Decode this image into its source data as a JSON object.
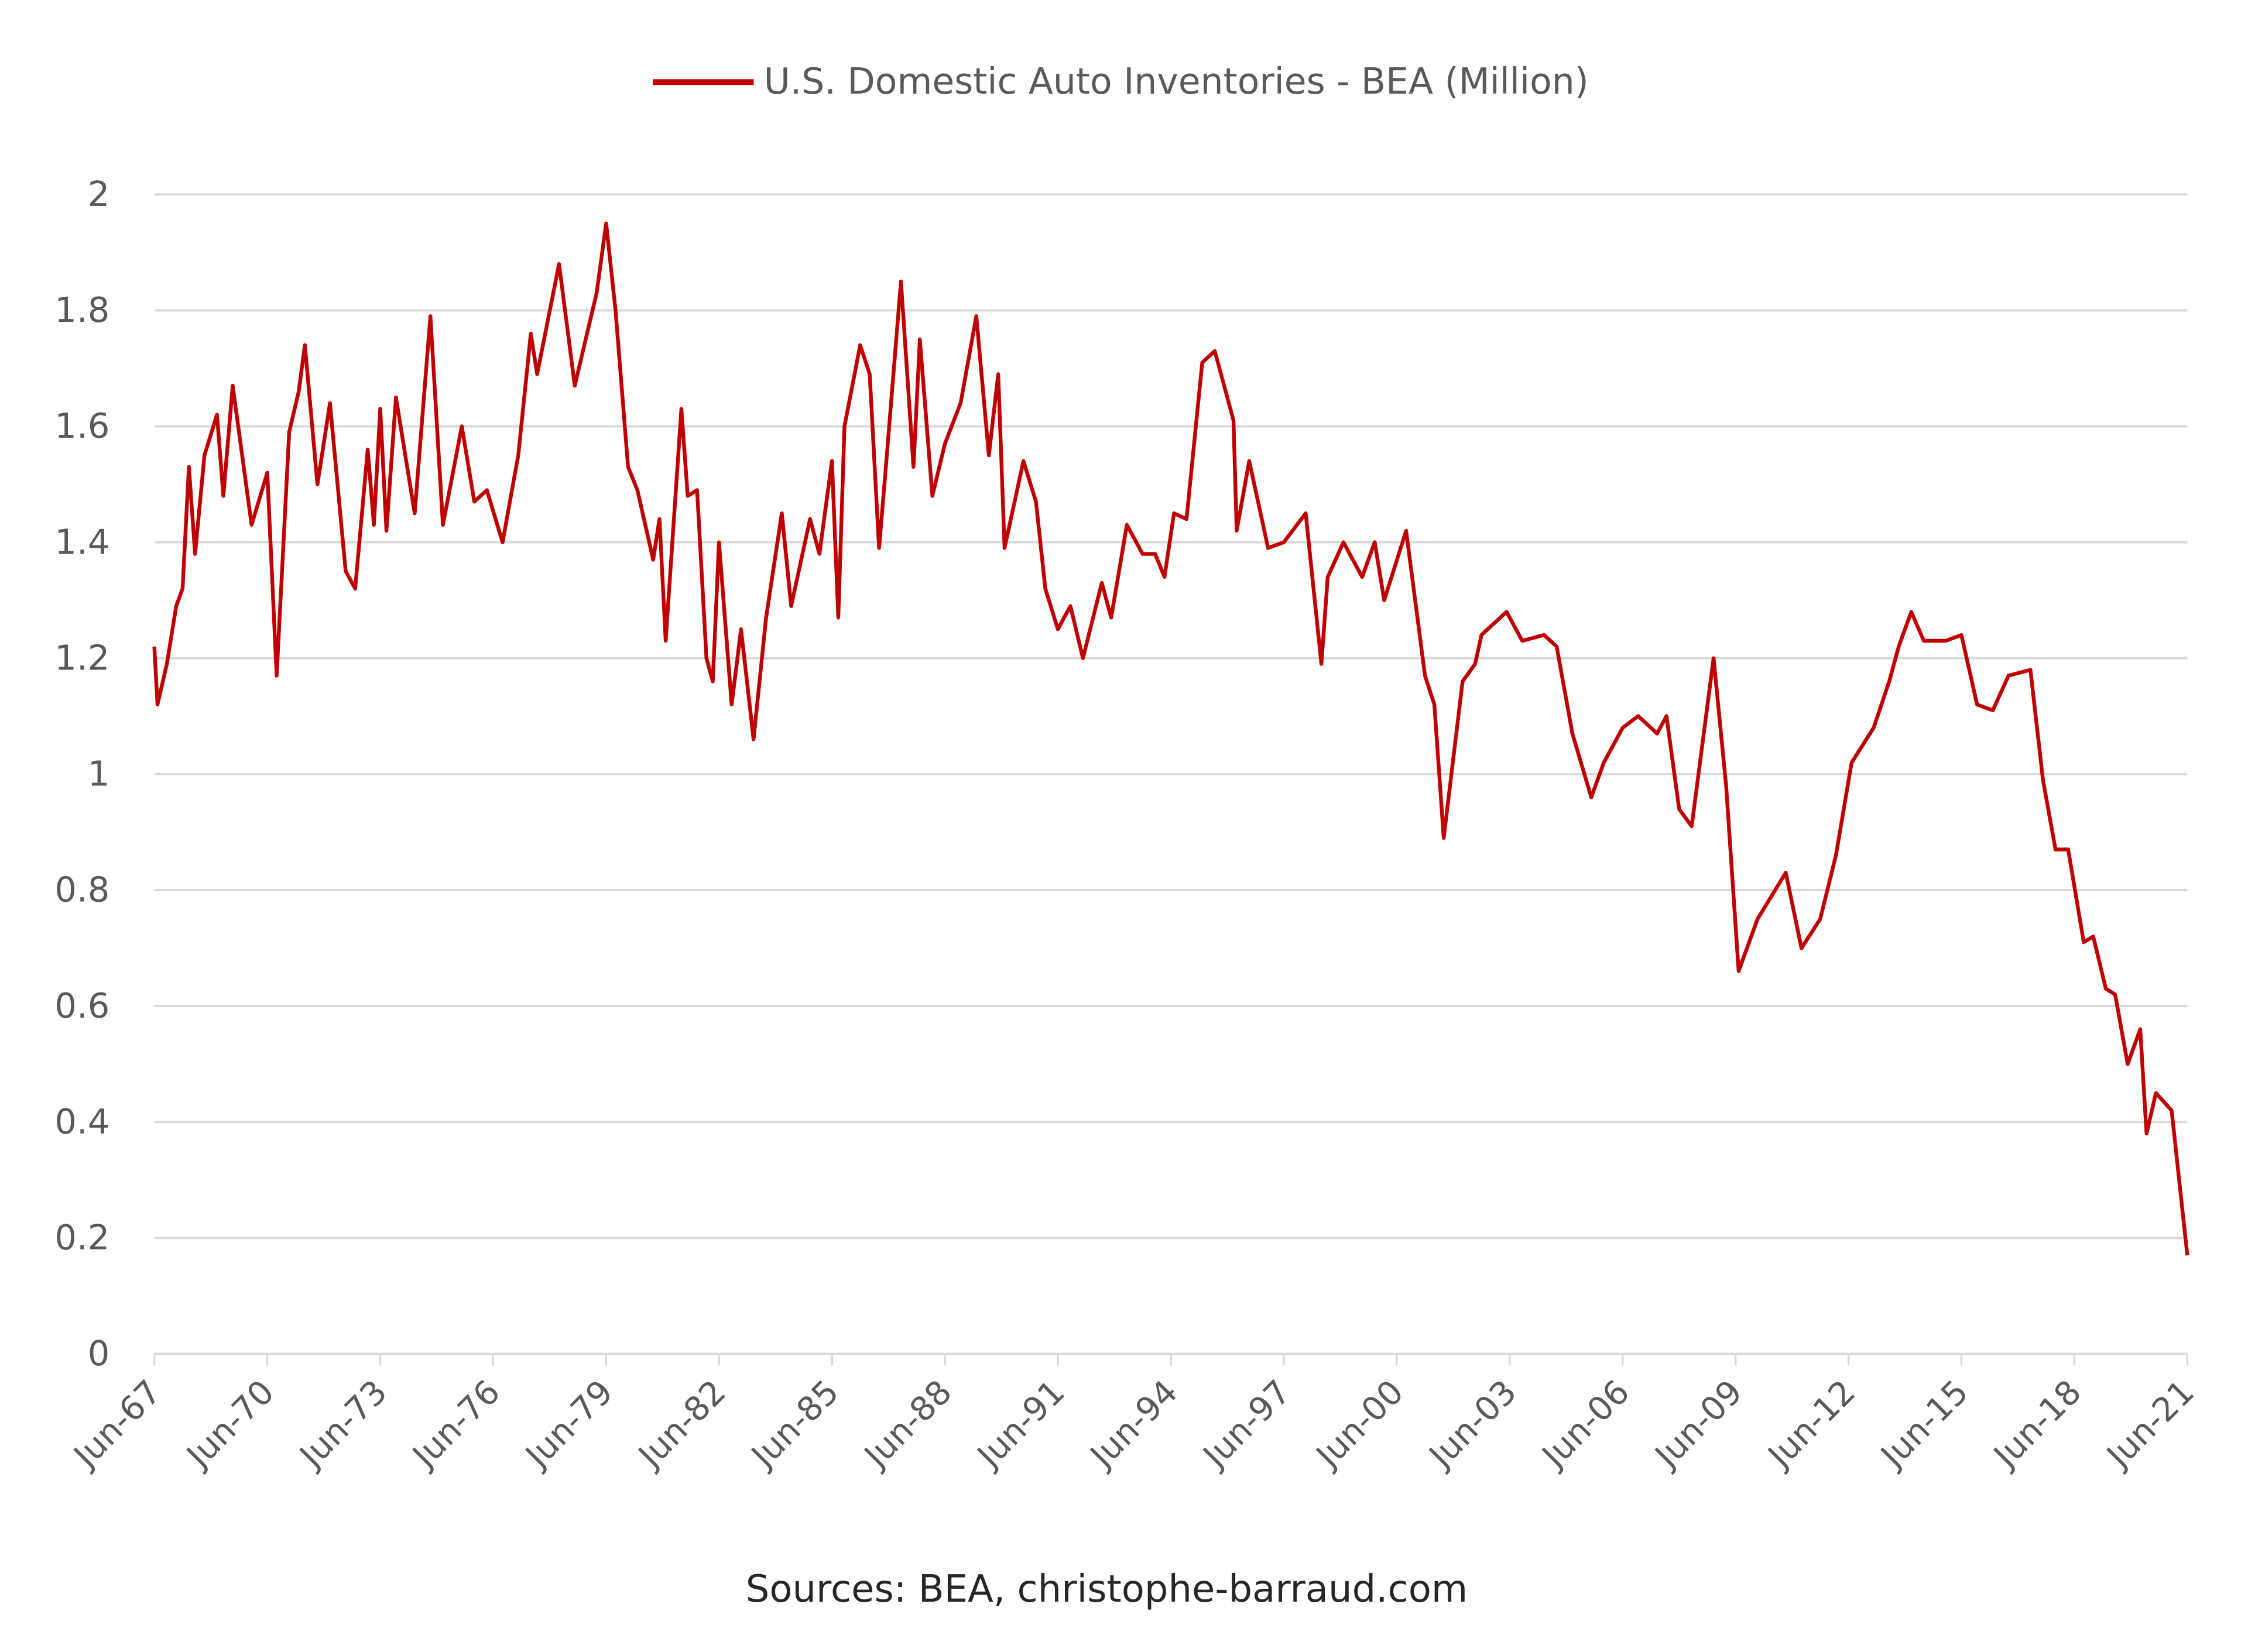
{
  "chart_data": {
    "type": "line",
    "title": "",
    "xlabel": "",
    "ylabel": "",
    "ylim": [
      0,
      2
    ],
    "xlim": [
      "1967-06",
      "2021-06"
    ],
    "grid": true,
    "legend_position": "top",
    "y_ticks": [
      "0",
      "0.2",
      "0.4",
      "0.6",
      "0.8",
      "1",
      "1.2",
      "1.4",
      "1.6",
      "1.8",
      "2"
    ],
    "x_ticks": [
      "Jun-67",
      "Jun-70",
      "Jun-73",
      "Jun-76",
      "Jun-79",
      "Jun-82",
      "Jun-85",
      "Jun-88",
      "Jun-91",
      "Jun-94",
      "Jun-97",
      "Jun-00",
      "Jun-03",
      "Jun-06",
      "Jun-09",
      "Jun-12",
      "Jun-15",
      "Jun-18",
      "Jun-21"
    ],
    "footer": "Sources: BEA, christophe-barraud.com",
    "series": [
      {
        "name": "U.S. Domestic Auto Inventories - BEA (Million)",
        "color": "#c00000",
        "points": [
          [
            "1967-06",
            1.22
          ],
          [
            "1967-07",
            1.12
          ],
          [
            "1967-10",
            1.19
          ],
          [
            "1968-01",
            1.29
          ],
          [
            "1968-03",
            1.32
          ],
          [
            "1968-05",
            1.53
          ],
          [
            "1968-07",
            1.38
          ],
          [
            "1968-10",
            1.55
          ],
          [
            "1969-02",
            1.62
          ],
          [
            "1969-04",
            1.48
          ],
          [
            "1969-07",
            1.67
          ],
          [
            "1970-01",
            1.43
          ],
          [
            "1970-06",
            1.52
          ],
          [
            "1970-09",
            1.17
          ],
          [
            "1971-01",
            1.59
          ],
          [
            "1971-04",
            1.66
          ],
          [
            "1971-06",
            1.74
          ],
          [
            "1971-10",
            1.5
          ],
          [
            "1972-02",
            1.64
          ],
          [
            "1972-07",
            1.35
          ],
          [
            "1972-10",
            1.32
          ],
          [
            "1973-02",
            1.56
          ],
          [
            "1973-04",
            1.43
          ],
          [
            "1973-06",
            1.63
          ],
          [
            "1973-08",
            1.42
          ],
          [
            "1973-11",
            1.65
          ],
          [
            "1974-05",
            1.45
          ],
          [
            "1974-10",
            1.79
          ],
          [
            "1975-02",
            1.43
          ],
          [
            "1975-08",
            1.6
          ],
          [
            "1975-12",
            1.47
          ],
          [
            "1976-04",
            1.49
          ],
          [
            "1976-09",
            1.4
          ],
          [
            "1977-02",
            1.55
          ],
          [
            "1977-06",
            1.76
          ],
          [
            "1977-08",
            1.69
          ],
          [
            "1978-03",
            1.88
          ],
          [
            "1978-08",
            1.67
          ],
          [
            "1979-03",
            1.83
          ],
          [
            "1979-06",
            1.95
          ],
          [
            "1979-09",
            1.8
          ],
          [
            "1980-01",
            1.53
          ],
          [
            "1980-04",
            1.49
          ],
          [
            "1980-09",
            1.37
          ],
          [
            "1980-11",
            1.44
          ],
          [
            "1981-01",
            1.23
          ],
          [
            "1981-06",
            1.63
          ],
          [
            "1981-08",
            1.48
          ],
          [
            "1981-11",
            1.49
          ],
          [
            "1982-02",
            1.2
          ],
          [
            "1982-04",
            1.16
          ],
          [
            "1982-06",
            1.4
          ],
          [
            "1982-10",
            1.12
          ],
          [
            "1983-01",
            1.25
          ],
          [
            "1983-05",
            1.06
          ],
          [
            "1983-09",
            1.27
          ],
          [
            "1984-02",
            1.45
          ],
          [
            "1984-05",
            1.29
          ],
          [
            "1984-11",
            1.44
          ],
          [
            "1985-02",
            1.38
          ],
          [
            "1985-06",
            1.54
          ],
          [
            "1985-08",
            1.27
          ],
          [
            "1985-10",
            1.6
          ],
          [
            "1986-03",
            1.74
          ],
          [
            "1986-06",
            1.69
          ],
          [
            "1986-09",
            1.39
          ],
          [
            "1986-11",
            1.52
          ],
          [
            "1987-04",
            1.85
          ],
          [
            "1987-08",
            1.53
          ],
          [
            "1987-10",
            1.75
          ],
          [
            "1988-02",
            1.48
          ],
          [
            "1988-06",
            1.57
          ],
          [
            "1988-11",
            1.64
          ],
          [
            "1989-04",
            1.79
          ],
          [
            "1989-08",
            1.55
          ],
          [
            "1989-11",
            1.69
          ],
          [
            "1990-01",
            1.39
          ],
          [
            "1990-07",
            1.54
          ],
          [
            "1990-11",
            1.47
          ],
          [
            "1991-02",
            1.32
          ],
          [
            "1991-06",
            1.25
          ],
          [
            "1991-10",
            1.29
          ],
          [
            "1992-02",
            1.2
          ],
          [
            "1992-08",
            1.33
          ],
          [
            "1992-11",
            1.27
          ],
          [
            "1993-04",
            1.43
          ],
          [
            "1993-09",
            1.38
          ],
          [
            "1994-01",
            1.38
          ],
          [
            "1994-04",
            1.34
          ],
          [
            "1994-07",
            1.45
          ],
          [
            "1994-11",
            1.44
          ],
          [
            "1995-04",
            1.71
          ],
          [
            "1995-08",
            1.73
          ],
          [
            "1995-12",
            1.65
          ],
          [
            "1996-02",
            1.61
          ],
          [
            "1996-03",
            1.42
          ],
          [
            "1996-07",
            1.54
          ],
          [
            "1997-01",
            1.39
          ],
          [
            "1997-06",
            1.4
          ],
          [
            "1998-01",
            1.45
          ],
          [
            "1998-06",
            1.19
          ],
          [
            "1998-08",
            1.34
          ],
          [
            "1999-01",
            1.4
          ],
          [
            "1999-07",
            1.34
          ],
          [
            "1999-11",
            1.4
          ],
          [
            "2000-02",
            1.3
          ],
          [
            "2000-09",
            1.42
          ],
          [
            "2001-03",
            1.17
          ],
          [
            "2001-06",
            1.12
          ],
          [
            "2001-09",
            0.89
          ],
          [
            "2002-03",
            1.16
          ],
          [
            "2002-07",
            1.19
          ],
          [
            "2002-09",
            1.24
          ],
          [
            "2003-05",
            1.28
          ],
          [
            "2003-10",
            1.23
          ],
          [
            "2004-05",
            1.24
          ],
          [
            "2004-09",
            1.22
          ],
          [
            "2005-02",
            1.07
          ],
          [
            "2005-08",
            0.96
          ],
          [
            "2005-12",
            1.02
          ],
          [
            "2006-06",
            1.08
          ],
          [
            "2006-11",
            1.1
          ],
          [
            "2007-05",
            1.07
          ],
          [
            "2007-08",
            1.1
          ],
          [
            "2007-12",
            0.94
          ],
          [
            "2008-04",
            0.91
          ],
          [
            "2008-11",
            1.2
          ],
          [
            "2009-03",
            0.98
          ],
          [
            "2009-07",
            0.66
          ],
          [
            "2010-01",
            0.75
          ],
          [
            "2010-10",
            0.83
          ],
          [
            "2011-03",
            0.7
          ],
          [
            "2011-09",
            0.75
          ],
          [
            "2012-02",
            0.86
          ],
          [
            "2012-07",
            1.02
          ],
          [
            "2013-02",
            1.08
          ],
          [
            "2013-07",
            1.16
          ],
          [
            "2013-10",
            1.22
          ],
          [
            "2014-02",
            1.28
          ],
          [
            "2014-06",
            1.23
          ],
          [
            "2015-01",
            1.23
          ],
          [
            "2015-06",
            1.24
          ],
          [
            "2015-11",
            1.12
          ],
          [
            "2016-04",
            1.11
          ],
          [
            "2016-09",
            1.17
          ],
          [
            "2017-04",
            1.18
          ],
          [
            "2017-08",
            0.99
          ],
          [
            "2017-12",
            0.87
          ],
          [
            "2018-04",
            0.87
          ],
          [
            "2018-09",
            0.71
          ],
          [
            "2018-12",
            0.72
          ],
          [
            "2019-04",
            0.63
          ],
          [
            "2019-07",
            0.62
          ],
          [
            "2019-11",
            0.5
          ],
          [
            "2020-03",
            0.56
          ],
          [
            "2020-05",
            0.38
          ],
          [
            "2020-08",
            0.45
          ],
          [
            "2021-01",
            0.42
          ],
          [
            "2021-06",
            0.17
          ]
        ]
      }
    ]
  }
}
